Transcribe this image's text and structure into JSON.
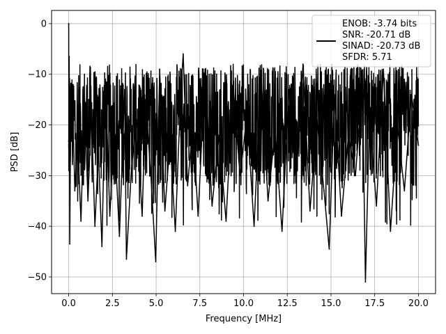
{
  "chart_data": {
    "type": "line",
    "title": "",
    "xlabel": "Frequency [MHz]",
    "ylabel": "PSD [dB]",
    "xlim": [
      -0.98,
      20.98
    ],
    "ylim": [
      -53.3,
      2.6
    ],
    "xticks": [
      0.0,
      2.5,
      5.0,
      7.5,
      10.0,
      12.5,
      15.0,
      17.5,
      20.0
    ],
    "xtick_labels": [
      "0.0",
      "2.5",
      "5.0",
      "7.5",
      "10.0",
      "12.5",
      "15.0",
      "17.5",
      "20.0"
    ],
    "yticks": [
      0,
      -10,
      -20,
      -30,
      -40,
      -50
    ],
    "ytick_labels": [
      "0",
      "−10",
      "−20",
      "−30",
      "−40",
      "−50"
    ],
    "grid": true,
    "legend_position": "top-right",
    "series": [
      {
        "name": "ENOB: -3.74 bits\nSNR: -20.71 dB\nSINAD: -20.73 dB\nSFDR: 5.71",
        "legend_lines": [
          "ENOB: -3.74 bits",
          "SNR: -20.71 dB",
          "SINAD: -20.73 dB",
          "SFDR: 5.71"
        ],
        "color": "#000000",
        "x": [
          0.0,
          0.01,
          0.03,
          0.06,
          0.1,
          0.2,
          0.35,
          0.5,
          0.7,
          0.9,
          1.1,
          1.3,
          1.5,
          1.7,
          1.9,
          2.1,
          2.35,
          2.6,
          2.9,
          3.2,
          3.3,
          3.6,
          3.9,
          4.2,
          4.4,
          4.7,
          4.98,
          5.2,
          5.5,
          5.8,
          6.1,
          6.4,
          6.55,
          6.8,
          7.1,
          7.4,
          7.8,
          8.2,
          8.6,
          9.0,
          9.4,
          9.8,
          10.2,
          10.6,
          11.0,
          11.4,
          11.8,
          12.2,
          12.6,
          13.0,
          13.4,
          13.8,
          14.2,
          14.6,
          14.9,
          15.2,
          15.6,
          16.0,
          16.4,
          16.8,
          16.97,
          17.2,
          17.6,
          18.0,
          18.4,
          18.8,
          19.2,
          19.6,
          20.0
        ],
        "y": [
          0.0,
          -29.0,
          -6.5,
          -43.5,
          -24.0,
          -12.0,
          -33.0,
          -22.0,
          -39.0,
          -14.0,
          -35.0,
          -17.5,
          -40.0,
          -25.0,
          -44.0,
          -11.0,
          -38.0,
          -21.0,
          -42.0,
          -13.0,
          -46.5,
          -28.0,
          -19.0,
          -38.0,
          -15.0,
          -30.0,
          -47.0,
          -9.0,
          -37.0,
          -23.0,
          -41.0,
          -14.0,
          -6.0,
          -32.0,
          -20.0,
          -38.0,
          -9.0,
          -36.0,
          -22.0,
          -39.0,
          -12.0,
          -30.0,
          -18.0,
          -40.0,
          -10.0,
          -35.0,
          -21.0,
          -41.0,
          -13.0,
          -31.0,
          -8.0,
          -37.0,
          -19.0,
          -33.0,
          -44.5,
          -14.0,
          -38.0,
          -22.0,
          -30.0,
          -11.0,
          -51.0,
          -18.0,
          -36.0,
          -9.0,
          -41.0,
          -20.0,
          -33.0,
          -14.0,
          -24.0
        ]
      }
    ]
  }
}
